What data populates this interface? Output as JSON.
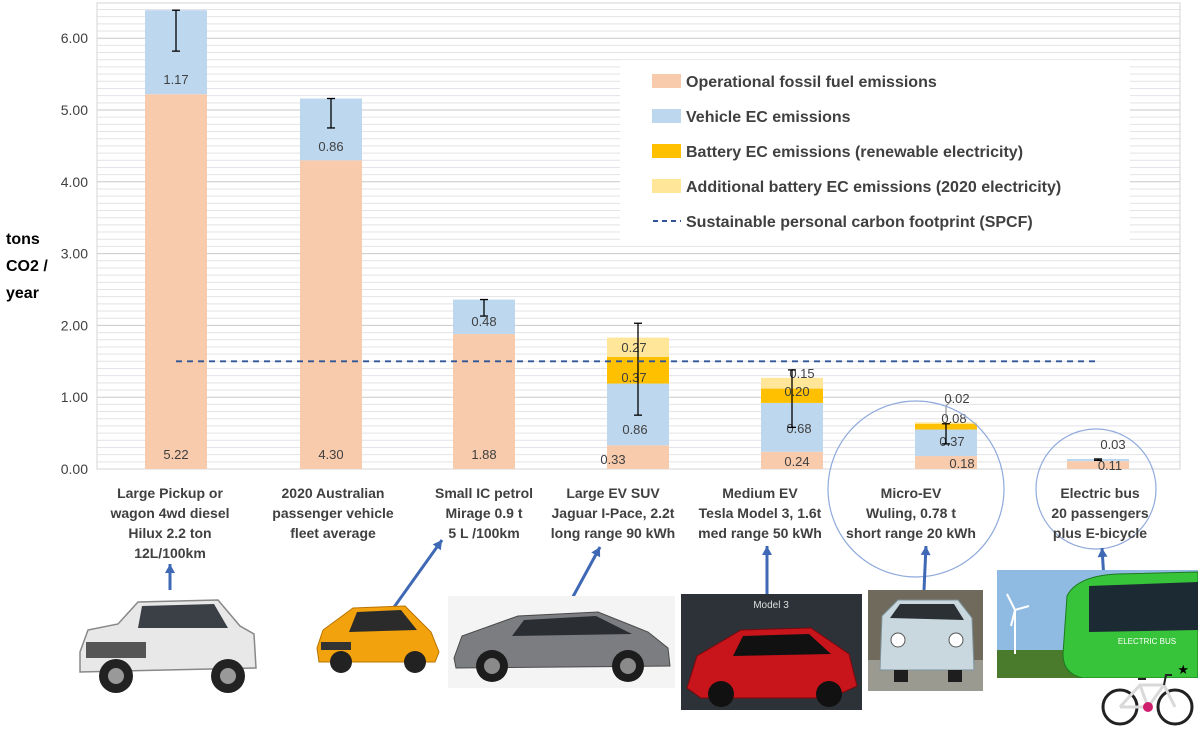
{
  "chart_data": {
    "type": "bar",
    "stacked": true,
    "ylabel_lines": [
      "tons",
      "CO2 /",
      "year"
    ],
    "ylim": [
      0,
      6.5
    ],
    "yticks": [
      "0.00",
      "1.00",
      "2.00",
      "3.00",
      "4.00",
      "5.00",
      "6.00"
    ],
    "grid": true,
    "legend_position": "top-right",
    "categories": [
      [
        "Large Pickup or",
        "wagon 4wd diesel",
        "Hilux 2.2 ton",
        "12L/100km"
      ],
      [
        "2020 Australian",
        "passenger vehicle",
        "fleet average"
      ],
      [
        "Small IC petrol",
        "Mirage 0.9 t",
        "5 L /100km"
      ],
      [
        "Large EV  SUV",
        "Jaguar I-Pace, 2.2t",
        "long range 90 kWh"
      ],
      [
        "Medium EV",
        "Tesla Model 3, 1.6t",
        "med range 50 kWh"
      ],
      [
        "Micro-EV",
        "Wuling,  0.78 t",
        "short range 20 kWh"
      ],
      [
        "Electric bus",
        "20 passengers",
        "plus E-bicycle"
      ]
    ],
    "series": [
      {
        "name": "Operational fossil fuel emissions",
        "color": "#F8CBAD",
        "values": [
          5.22,
          4.3,
          1.88,
          0.33,
          0.24,
          0.18,
          0.11
        ],
        "labels": [
          "5.22",
          "4.30",
          "1.88",
          "0.33",
          "0.24",
          "0.18",
          "0.11"
        ]
      },
      {
        "name": "Vehicle EC emissions",
        "color": "#BDD7EE",
        "values": [
          1.17,
          0.86,
          0.48,
          0.86,
          0.68,
          0.37,
          0.03
        ],
        "labels": [
          "1.17",
          "0.86",
          "0.48",
          "0.86",
          "0.68",
          "0.37",
          "0.03"
        ]
      },
      {
        "name": "Battery EC emissions  (renewable electricity)",
        "color": "#FFC000",
        "values": [
          0,
          0,
          0,
          0.37,
          0.2,
          0.08,
          0
        ],
        "labels": [
          "",
          "",
          "",
          "0.37",
          "0.20",
          "0.08",
          ""
        ]
      },
      {
        "name": "Additional battery EC emissions (2020 electricity)",
        "color": "#FFE699",
        "values": [
          0,
          0,
          0,
          0.27,
          0.15,
          0.02,
          0
        ],
        "labels": [
          "",
          "",
          "",
          "0.27",
          "0.15",
          "0.02",
          ""
        ]
      }
    ],
    "error_bars": [
      {
        "low": 5.82,
        "high": 6.39
      },
      {
        "low": 4.75,
        "high": 5.16
      },
      {
        "low": 2.13,
        "high": 2.36
      },
      {
        "low": 0.75,
        "high": 2.03
      },
      {
        "low": 0.58,
        "high": 1.38
      },
      {
        "low": 0.35,
        "high": 0.63
      },
      {
        "low": 0.12,
        "high": 0.14
      }
    ],
    "reference_line": {
      "name": "Sustainable personal carbon footprint (SPCF)",
      "value": 1.5,
      "color": "#2F5597",
      "x_from": 0.5,
      "x_to": 6.55
    }
  },
  "photos": {
    "bus_sign": "ELECTRIC BUS",
    "tesla_badge": "Model 3"
  }
}
